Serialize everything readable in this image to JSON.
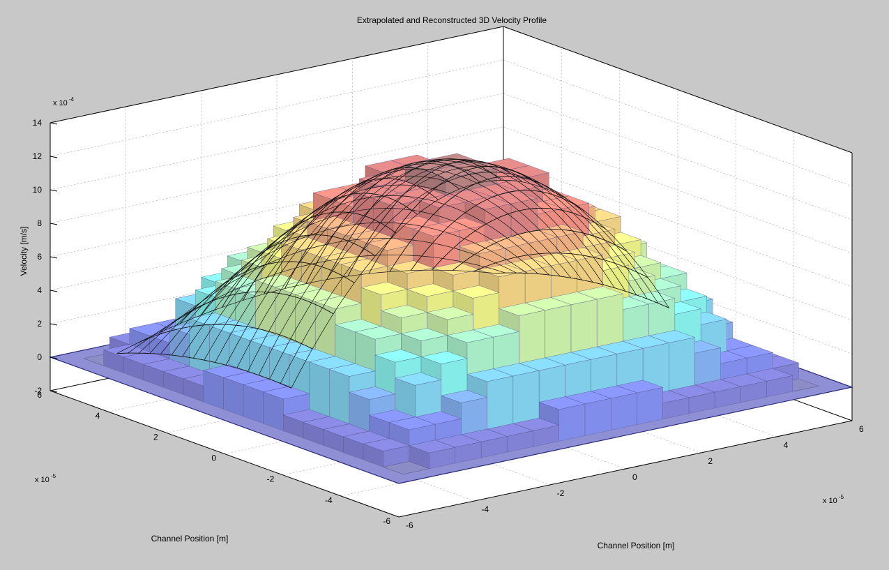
{
  "colors": {
    "figure_background": "#c8c8c8",
    "axes_background": "#ffffff",
    "grid": "#b4b4b4",
    "mesh_line": "#101010",
    "base_plane": "#2a2a7a",
    "colormap": "jet"
  },
  "chart_data": {
    "type": "surface-3d",
    "title": "Extrapolated and Reconstructed 3D Velocity Profile",
    "xlabel": "Channel Position [m]",
    "ylabel": "Channel Position [m]",
    "zlabel": "Velocity [m/s]",
    "x_exponent_label": "x 10",
    "x_exponent": "-5",
    "y_exponent_label": "x 10",
    "y_exponent": "-5",
    "z_exponent_label": "x 10",
    "z_exponent": "-4",
    "xlim": [
      -6,
      6
    ],
    "ylim": [
      -6,
      6
    ],
    "zlim": [
      -2,
      14
    ],
    "x_ticks": [
      "-6",
      "-4",
      "-2",
      "0",
      "2",
      "4",
      "6"
    ],
    "y_ticks": [
      "-6",
      "-4",
      "-2",
      "0",
      "2",
      "4",
      "6"
    ],
    "z_ticks": [
      "-2",
      "0",
      "2",
      "4",
      "6",
      "8",
      "10",
      "12",
      "14"
    ],
    "grid": true,
    "legend": "none",
    "surface": {
      "description_shape": "paraboloid-like channel profile, stepped (extrapolated) with measured points overlay",
      "x_range": [
        -5.5,
        5.5
      ],
      "y_range": [
        -5.5,
        5.5
      ],
      "peak_velocity": 12.3,
      "base_velocity": 0,
      "center": [
        0,
        0
      ],
      "steps": 13
    }
  }
}
